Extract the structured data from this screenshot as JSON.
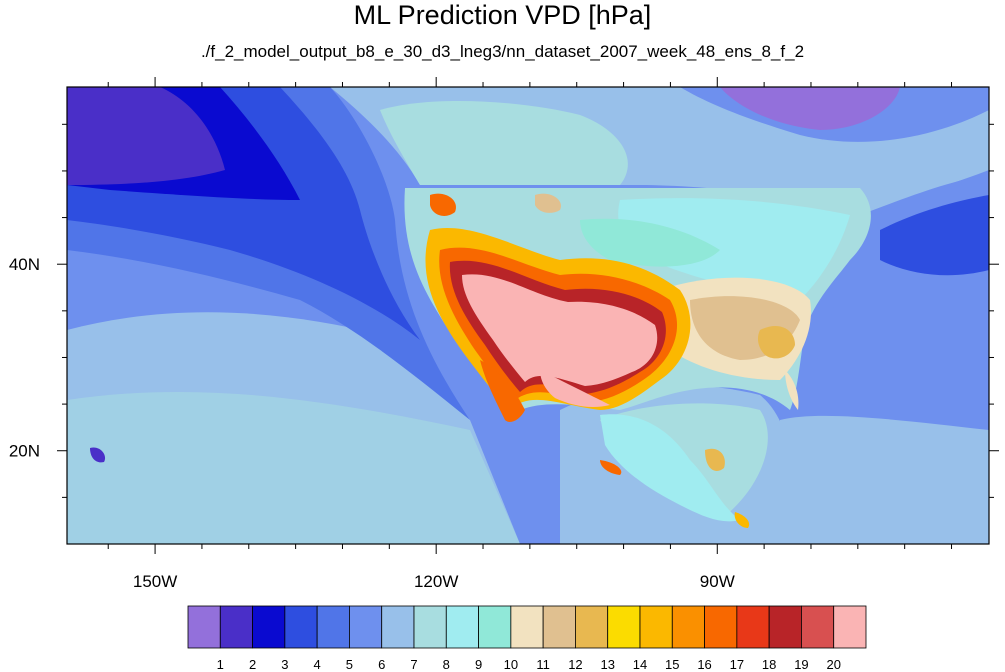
{
  "title": "ML Prediction VPD [hPa]",
  "subtitle": "./f_2_model_output_b8_e_30_d3_lneg3/nn_dataset_2007_week_48_ens_8_f_2",
  "map": {
    "lon_ticks": [
      {
        "value": -150,
        "label": "150W"
      },
      {
        "value": -120,
        "label": "120W"
      },
      {
        "value": -90,
        "label": "90W"
      }
    ],
    "lat_ticks": [
      {
        "value": 40,
        "label": "40N"
      },
      {
        "value": 20,
        "label": "20N"
      }
    ],
    "lon_range": [
      -159.4,
      -61.0
    ],
    "lat_range": [
      10.0,
      59.0
    ]
  },
  "colorbar": {
    "colors": [
      "#9370db",
      "#4a2fc8",
      "#0a0ad0",
      "#2e4ee0",
      "#5075e8",
      "#6e90ee",
      "#98c0ea",
      "#a8dde0",
      "#a0ecf0",
      "#90e8d8",
      "#f2e2c0",
      "#e0c090",
      "#e8b850",
      "#fbdc00",
      "#fbb800",
      "#fa9000",
      "#f86800",
      "#e83818",
      "#b82428",
      "#d85050",
      "#fab4b4"
    ],
    "labels": [
      "1",
      "2",
      "3",
      "4",
      "5",
      "6",
      "7",
      "8",
      "9",
      "10",
      "11",
      "12",
      "13",
      "14",
      "15",
      "16",
      "17",
      "18",
      "19",
      "20"
    ]
  }
}
